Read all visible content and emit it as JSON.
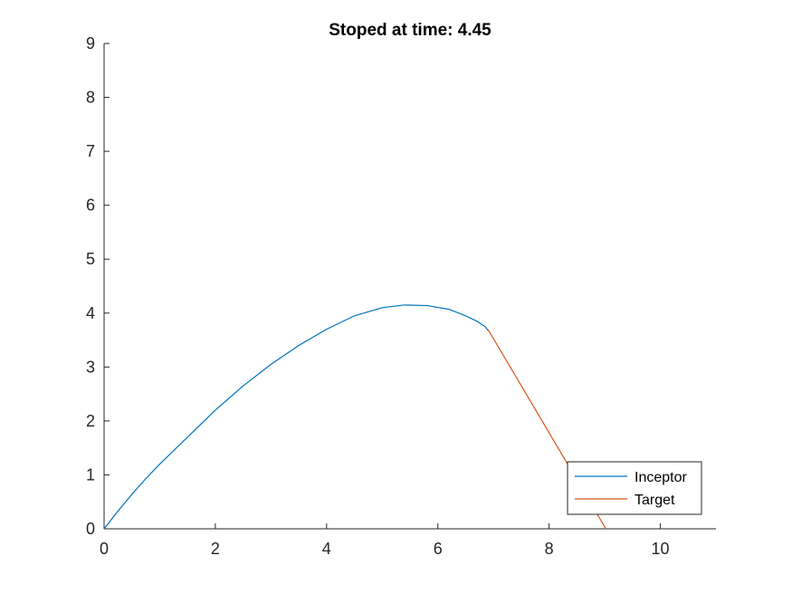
{
  "chart_data": {
    "type": "line",
    "title": "Stoped at time: 4.45",
    "xlabel": "",
    "ylabel": "",
    "xlim": [
      0,
      11
    ],
    "ylim": [
      0,
      9
    ],
    "xticks": [
      0,
      2,
      4,
      6,
      8,
      10
    ],
    "yticks": [
      0,
      1,
      2,
      3,
      4,
      5,
      6,
      7,
      8,
      9
    ],
    "grid": false,
    "legend_position": "bottom-right",
    "series": [
      {
        "name": "Inceptor",
        "color": "#0072BD",
        "x": [
          0,
          0.25,
          0.5,
          0.75,
          1.0,
          1.5,
          2.0,
          2.5,
          3.0,
          3.5,
          4.0,
          4.5,
          5.0,
          5.4,
          5.8,
          6.2,
          6.5,
          6.7,
          6.85,
          6.9
        ],
        "y": [
          0,
          0.33,
          0.64,
          0.93,
          1.2,
          1.7,
          2.2,
          2.65,
          3.05,
          3.4,
          3.7,
          3.95,
          4.1,
          4.15,
          4.14,
          4.07,
          3.95,
          3.85,
          3.75,
          3.68
        ]
      },
      {
        "name": "Target",
        "color": "#D95319",
        "x": [
          6.9,
          9.05
        ],
        "y": [
          3.7,
          -0.05
        ]
      }
    ]
  }
}
